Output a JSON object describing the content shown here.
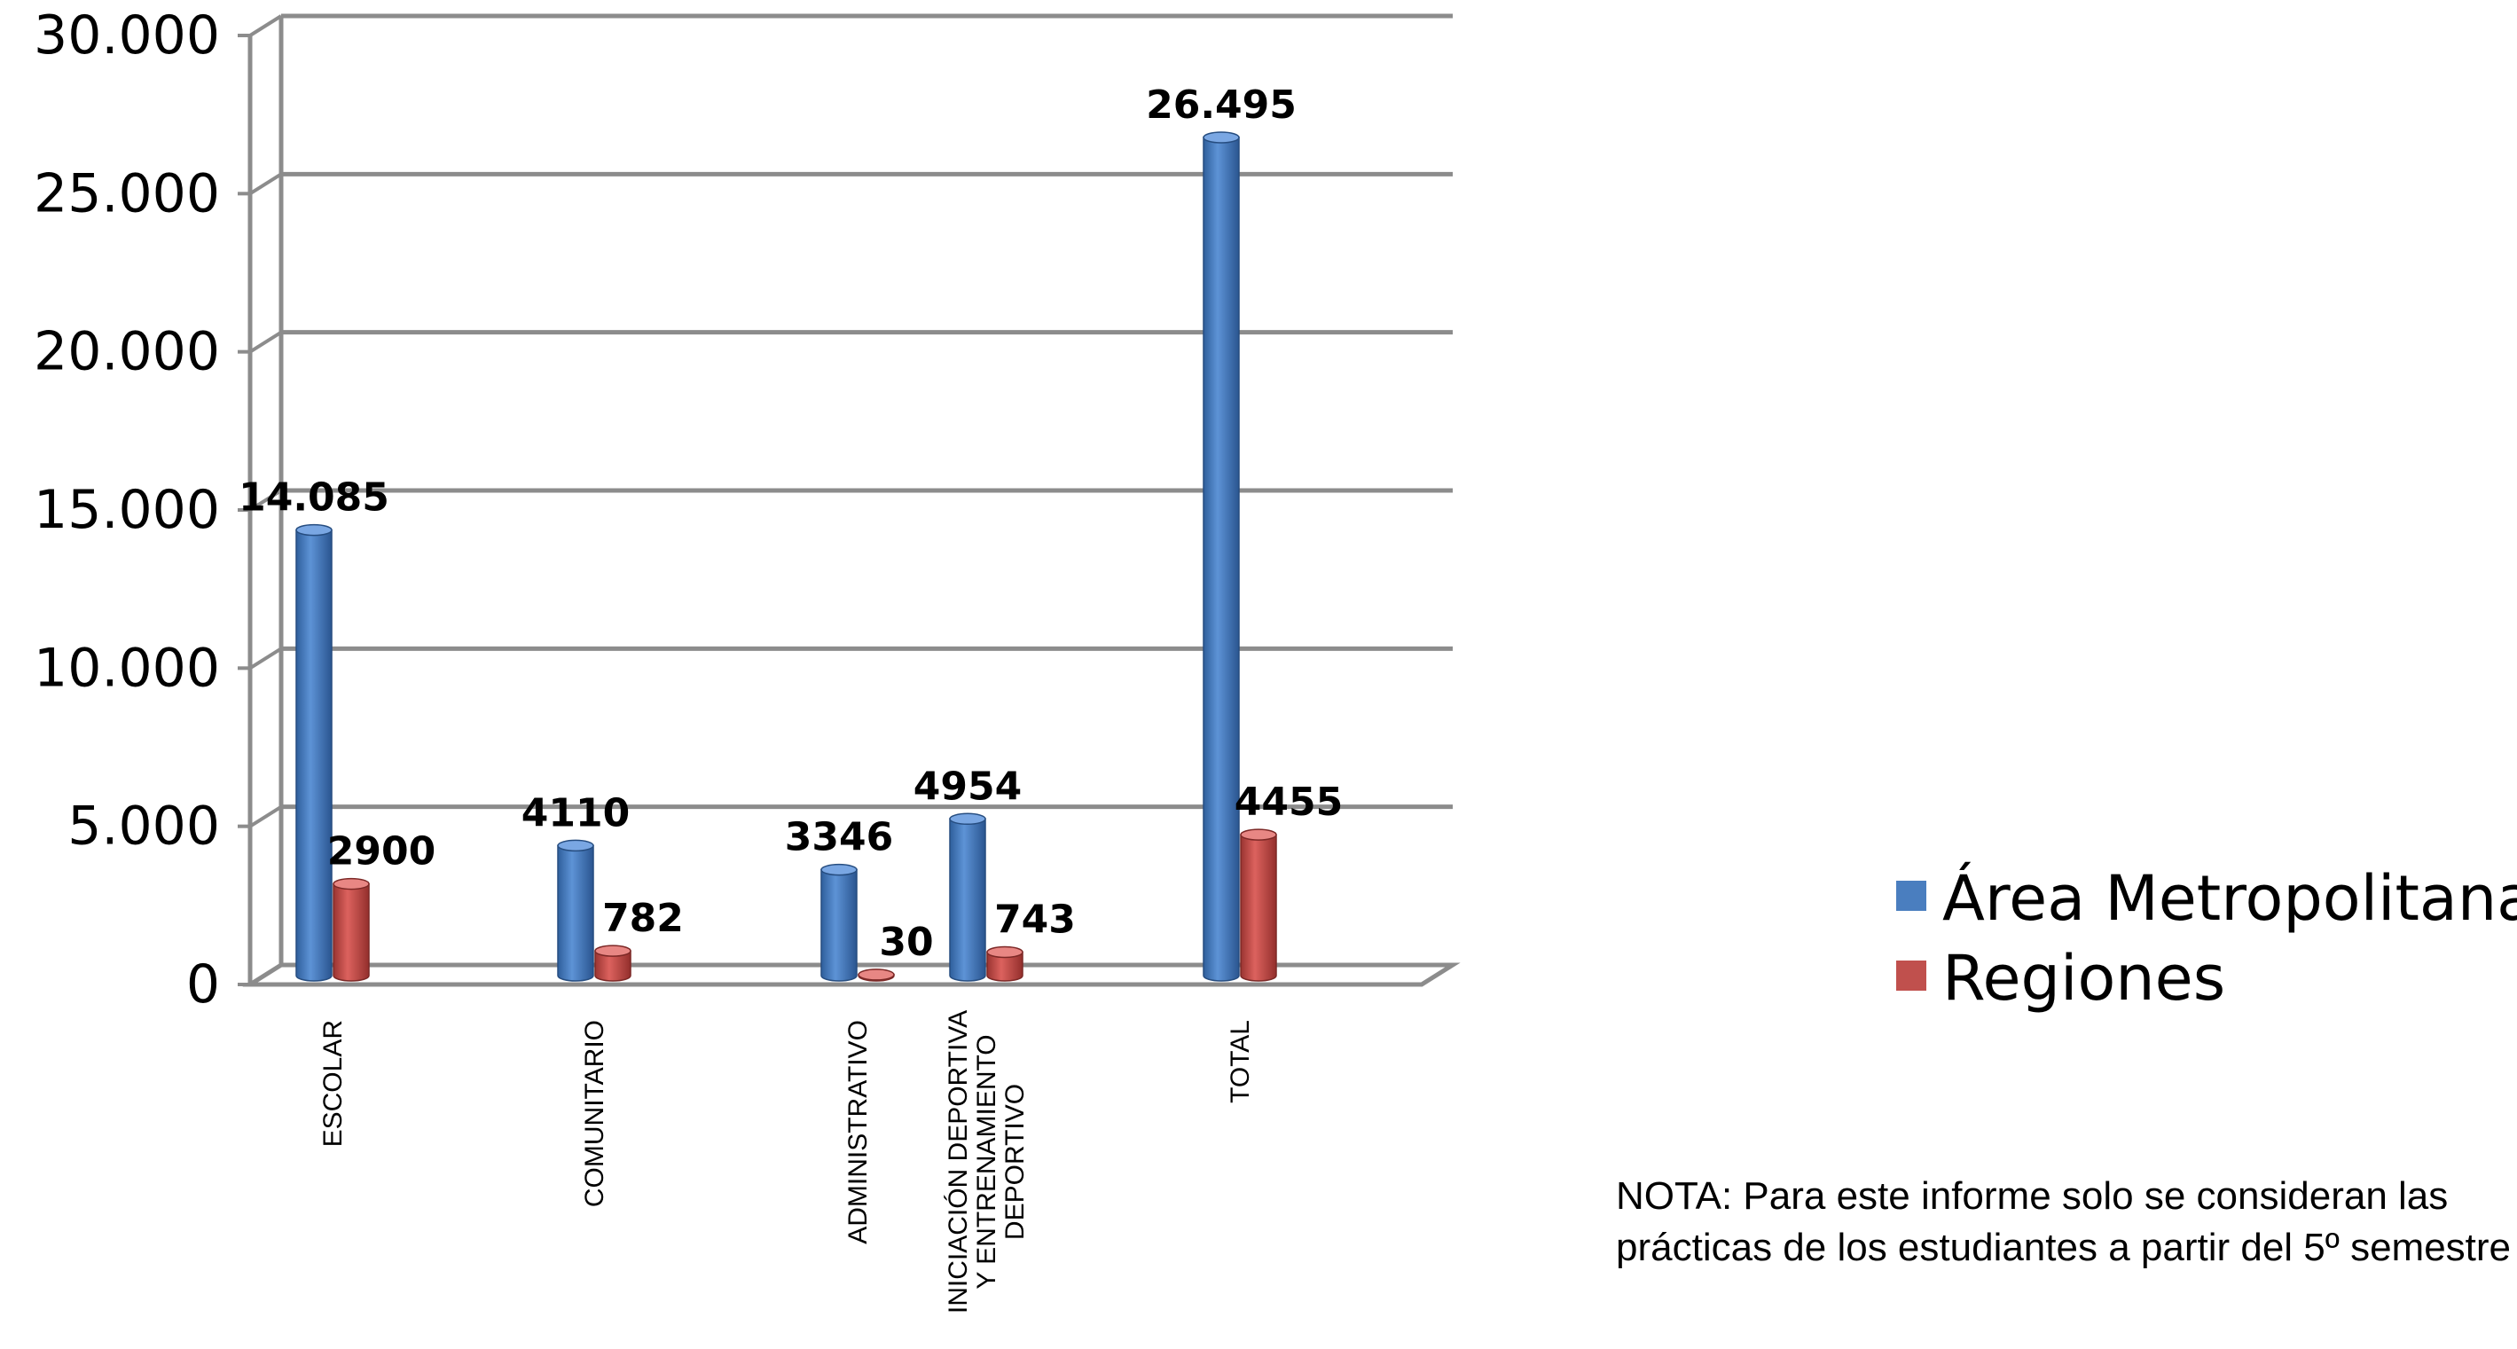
{
  "chart_data": {
    "type": "bar",
    "categories": [
      [
        "ESCOLAR"
      ],
      [
        "COMUNITARIO"
      ],
      [
        "ADMINISTRATIVO"
      ],
      [
        "INICIACIÓN DEPORTIVA",
        "Y ENTRENAMIENTO",
        "DEPORTIVO"
      ],
      [
        "TOTAL"
      ]
    ],
    "series": [
      {
        "name": "Área Metropolitana",
        "color": "#4a7ebf",
        "values": [
          14085,
          4110,
          3346,
          4954,
          26495
        ],
        "labels": [
          "14.085",
          "4110",
          "3346",
          "4954",
          "26.495"
        ]
      },
      {
        "name": "Regiones",
        "color": "#c0504d",
        "values": [
          2900,
          782,
          30,
          743,
          4455
        ],
        "labels": [
          "2900",
          "782",
          "30",
          "743",
          "4455"
        ]
      }
    ],
    "yticks": [
      "0",
      "5.000",
      "10.000",
      "15.000",
      "20.000",
      "25.000",
      "30.000"
    ],
    "ylim": [
      0,
      30000
    ],
    "grid": true,
    "legend": "right"
  },
  "note": {
    "line1": "NOTA: Para este informe solo se consideran las",
    "line2": "prácticas de los estudiantes a partir del 5º semestre"
  }
}
